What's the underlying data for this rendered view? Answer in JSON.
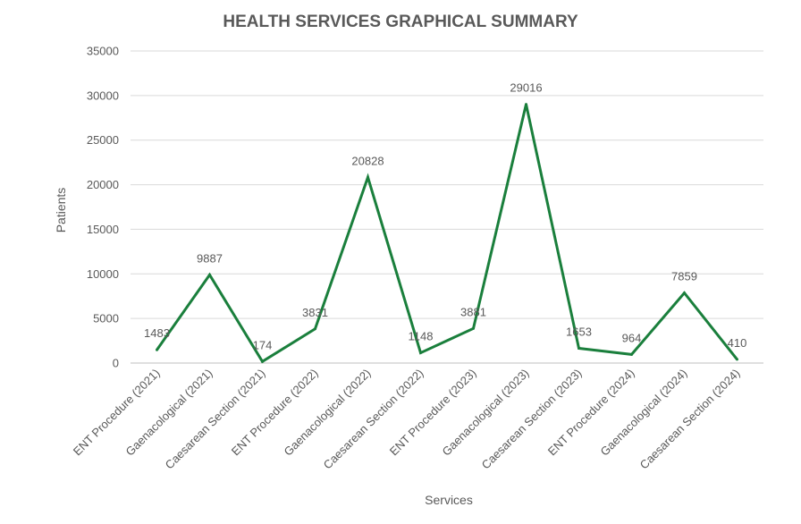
{
  "chart_data": {
    "type": "line",
    "title": "HEALTH SERVICES GRAPHICAL SUMMARY",
    "xlabel": "Services",
    "ylabel": "Patients",
    "ylim": [
      0,
      35000
    ],
    "yticks": [
      "0",
      "5000",
      "10000",
      "15000",
      "20000",
      "25000",
      "30000",
      "35000"
    ],
    "grid": true,
    "legend": "none",
    "line_color": "#1a7f3c",
    "categories": [
      "ENT Procedure (2021)",
      "Gaenacological (2021)",
      "Caesarean Section (2021)",
      "ENT Procedure (2022)",
      "Gaenacological (2022)",
      "Caesarean Section (2022)",
      "ENT Procedure (2023)",
      "Gaenacological (2023)",
      "Caesarean Section (2023)",
      "ENT Procedure (2024)",
      "Gaenacological (2024)",
      "Caesarean Section (2024)"
    ],
    "series": [
      {
        "values": [
          1483,
          9887,
          174,
          3831,
          20828,
          1148,
          3881,
          29016,
          1653,
          964,
          7859,
          410
        ]
      }
    ]
  }
}
